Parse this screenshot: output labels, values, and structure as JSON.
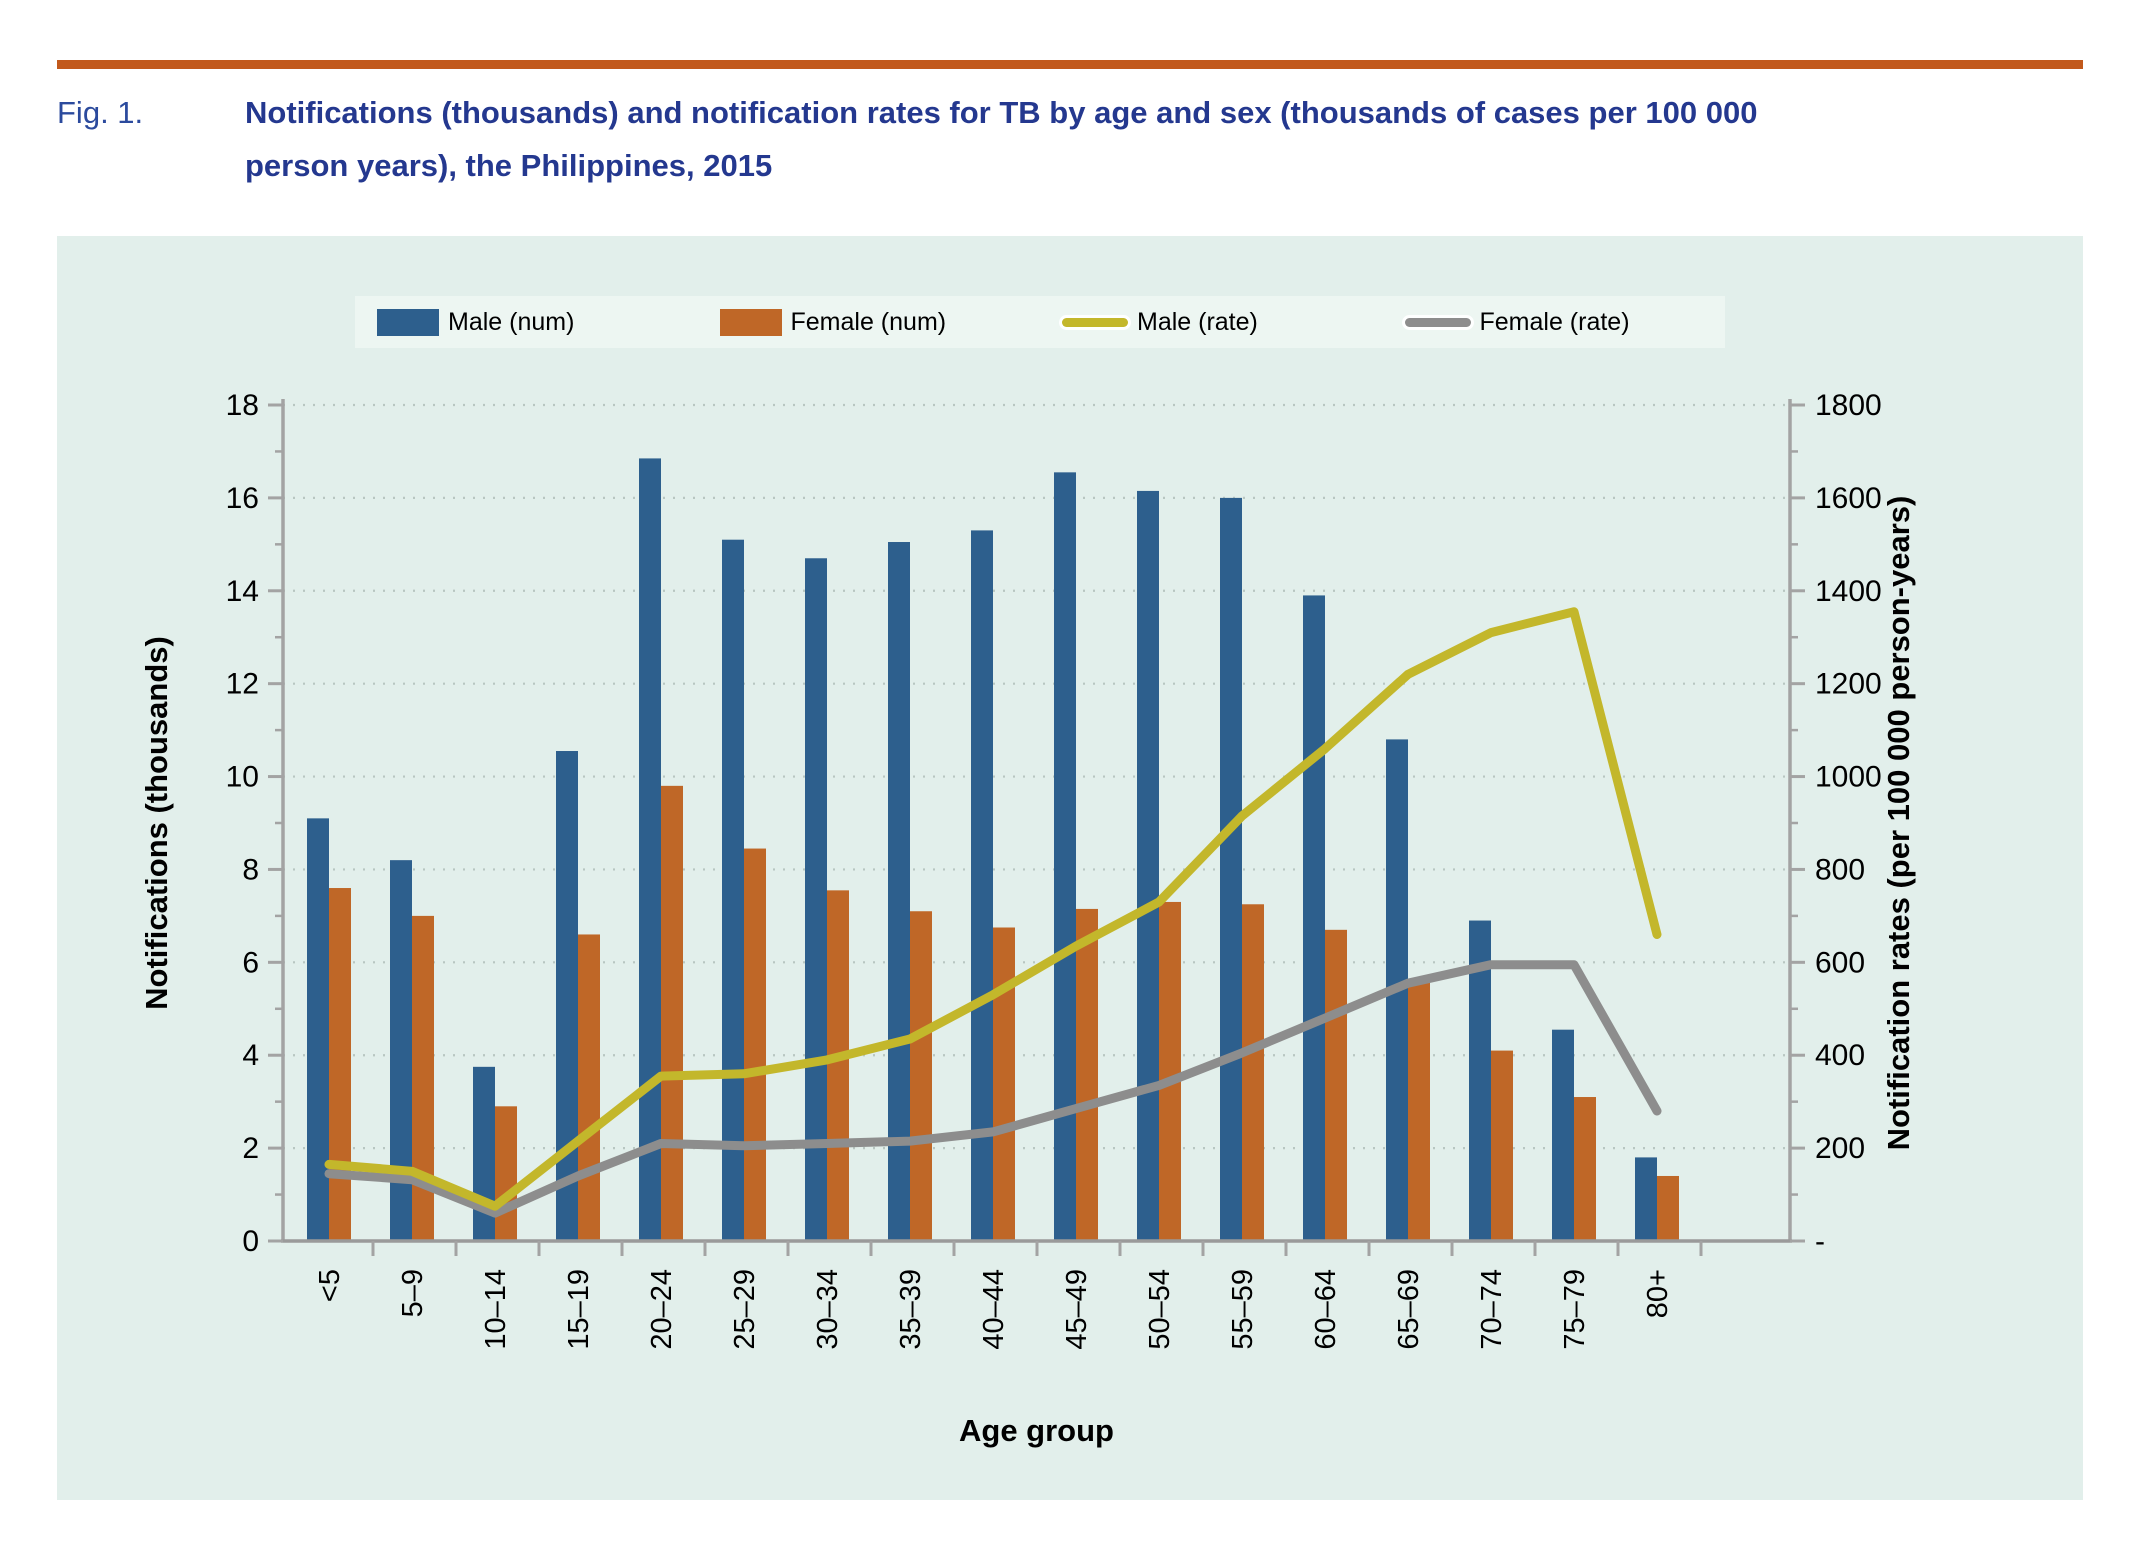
{
  "figure": {
    "label": "Fig. 1.",
    "title_line_1": "Notifications (thousands) and notification rates for TB by age and sex (thousands of cases per 100 000",
    "title_line_2": "person years), the Philippines, 2015"
  },
  "legend": [
    {
      "label": "Male (num)",
      "swatch": "rect",
      "color": "#2d5f8d"
    },
    {
      "label": "Female (num)",
      "swatch": "rect",
      "color": "#bf6727"
    },
    {
      "label": "Male (rate)",
      "swatch": "line",
      "color": "#c3b72b"
    },
    {
      "label": "Female (rate)",
      "swatch": "line",
      "color": "#8d8d8d"
    }
  ],
  "chart_data": {
    "type": "bar",
    "subtype": "grouped bars with two overlay rate lines (dual axis)",
    "title": "Notifications (thousands) and notification rates for TB by age and sex (thousands of cases per 100 000 person years), the Philippines, 2015",
    "categories": [
      "<5",
      "5–9",
      "10–14",
      "15–19",
      "20–24",
      "25–29",
      "30–34",
      "35–39",
      "40–44",
      "45–49",
      "50–54",
      "55–59",
      "60–64",
      "65–69",
      "70–74",
      "75–79",
      "80+"
    ],
    "series": [
      {
        "name": "Male (num)",
        "type": "bar",
        "axis": "left",
        "color": "#2d5f8d",
        "values": [
          9.1,
          8.2,
          3.75,
          10.55,
          16.85,
          15.1,
          14.7,
          15.05,
          15.3,
          16.55,
          16.15,
          16.0,
          13.9,
          10.8,
          6.9,
          4.55,
          1.8
        ]
      },
      {
        "name": "Female (num)",
        "type": "bar",
        "axis": "left",
        "color": "#bf6727",
        "values": [
          7.6,
          7.0,
          2.9,
          6.6,
          9.8,
          8.45,
          7.55,
          7.1,
          6.75,
          7.15,
          7.3,
          7.25,
          6.7,
          5.65,
          4.1,
          3.1,
          1.4
        ]
      },
      {
        "name": "Male (rate)",
        "type": "line",
        "axis": "right",
        "color": "#c3b72b",
        "values": [
          165,
          150,
          75,
          215,
          355,
          360,
          390,
          435,
          530,
          635,
          730,
          915,
          1060,
          1220,
          1310,
          1355,
          660
        ]
      },
      {
        "name": "Female (rate)",
        "type": "line",
        "axis": "right",
        "color": "#8d8d8d",
        "values": [
          145,
          132,
          60,
          140,
          210,
          205,
          210,
          215,
          235,
          285,
          335,
          405,
          480,
          555,
          595,
          595,
          280
        ]
      }
    ],
    "xlabel": "Age group",
    "ylabel_left": "Notifications (thousands)",
    "ylabel_right": "Notification rates (per 100 000 person-years)",
    "ylim_left": [
      0,
      18
    ],
    "ylim_right": [
      0,
      1800
    ],
    "yticks_left": [
      "0",
      "2",
      "4",
      "6",
      "8",
      "10",
      "12",
      "14",
      "16",
      "18"
    ],
    "yticks_right": [
      "-",
      "200",
      "400",
      "600",
      "800",
      "1000",
      "1200",
      "1400",
      "1600",
      "1800"
    ],
    "grid": "dotted horizontal gridlines at left-axis steps of 2",
    "legend_position": "top center strip"
  },
  "colors": {
    "accent_rule": "#c2591c",
    "title_blue": "#24388f",
    "fig_label_blue": "#2b4a9d",
    "panel_background": "#e2efeb",
    "legend_background": "#edf6f2",
    "male_bar": "#2d5f8d",
    "female_bar": "#bf6727",
    "male_line": "#c3b72b",
    "female_line": "#8d8d8d",
    "gridline": "#b8c6c1",
    "axis_line": "#a3a3a3",
    "tick_text": "#000000"
  }
}
